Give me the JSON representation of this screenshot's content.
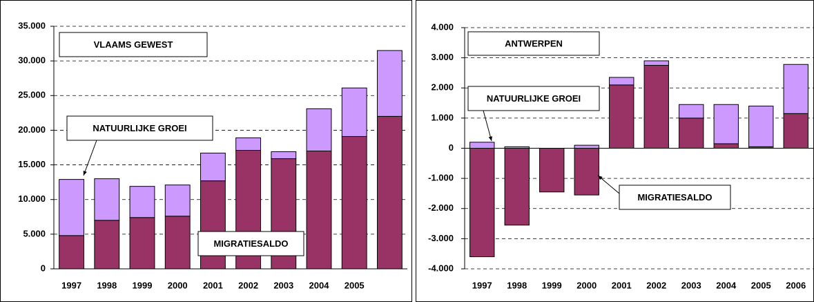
{
  "chart_data": [
    {
      "type": "bar",
      "stacked": true,
      "title": "VLAAMS GEWEST",
      "categories": [
        "1997",
        "1998",
        "1999",
        "2000",
        "2001",
        "2002",
        "2003",
        "2004",
        "2005",
        null
      ],
      "series": [
        {
          "name": "MIGRATIESALDO",
          "color": "#993366",
          "values": [
            4800,
            7000,
            7400,
            7600,
            12700,
            17100,
            15900,
            17000,
            19100,
            22000
          ]
        },
        {
          "name": "NATUURLIJKE GROEI",
          "color": "#cc99ff",
          "values": [
            8100,
            6000,
            4500,
            4500,
            4000,
            1800,
            1000,
            6100,
            7000,
            9500
          ]
        }
      ],
      "ylim": [
        0,
        35000
      ],
      "yticks": [
        0,
        {
          "value": 5000,
          "label": "5.000"
        },
        {
          "value": 10000,
          "label": "10.000"
        },
        {
          "value": 15000,
          "label": "15.000"
        },
        {
          "value": 20000,
          "label": "20.000"
        },
        {
          "value": 25000,
          "label": "25.000"
        },
        {
          "value": 30000,
          "label": "30.000"
        },
        {
          "value": 35000,
          "label": "35.000"
        }
      ],
      "grid": true
    },
    {
      "type": "bar",
      "stacked": true,
      "title": "ANTWERPEN",
      "categories": [
        "1997",
        "1998",
        "1999",
        "2000",
        "2001",
        "2002",
        "2003",
        "2004",
        "2005",
        "2006"
      ],
      "series": [
        {
          "name": "MIGRATIESALDO",
          "color": "#993366",
          "values": [
            -3600,
            -2550,
            -1450,
            -1550,
            2100,
            2750,
            1000,
            150,
            50,
            1150
          ]
        },
        {
          "name": "NATUURLIJKE GROEI",
          "color": "#cc99ff",
          "values": [
            200,
            50,
            0,
            100,
            250,
            150,
            450,
            1300,
            1350,
            1630
          ]
        }
      ],
      "ylim": [
        -4000,
        4000
      ],
      "yticks": [
        {
          "value": -4000,
          "label": "-4.000"
        },
        {
          "value": -3000,
          "label": "-3.000"
        },
        {
          "value": -2000,
          "label": "-2.000"
        },
        {
          "value": -1000,
          "label": "-1.000"
        },
        0,
        {
          "value": 1000,
          "label": "1.000"
        },
        {
          "value": 2000,
          "label": "2.000"
        },
        {
          "value": 3000,
          "label": "3.000"
        },
        {
          "value": 4000,
          "label": "4.000"
        }
      ],
      "grid": true
    }
  ]
}
